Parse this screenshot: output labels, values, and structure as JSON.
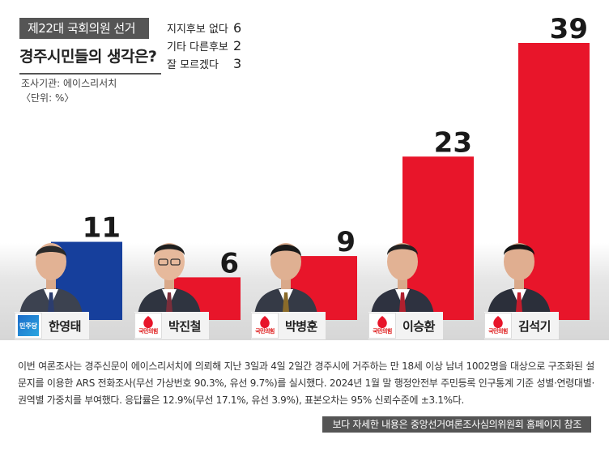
{
  "header": {
    "election_tag": "제22대 국회의원 선거",
    "headline": "경주시민들의 생각은?",
    "agency": "조사기관: 에이스리서치",
    "unit": "〈단위: %〉"
  },
  "other_responses": [
    {
      "label": "지지후보 없다",
      "value": "6"
    },
    {
      "label": "기타 다른후보",
      "value": "2"
    },
    {
      "label": "잘 모르겠다",
      "value": "3"
    }
  ],
  "colors": {
    "ppp_red": "#e8152a",
    "dp_blue": "#163f9c",
    "label_dark": "#1a1a1a"
  },
  "chart_data": {
    "type": "bar",
    "title": "경주시민들의 생각은?",
    "unit": "%",
    "categories": [
      "한영태",
      "박진철",
      "박병훈",
      "이승환",
      "김석기"
    ],
    "values": [
      11,
      6,
      9,
      23,
      39
    ],
    "parties": [
      "더불어민주당",
      "국민의힘",
      "국민의힘",
      "국민의힘",
      "국민의힘"
    ],
    "bar_colors": [
      "#163f9c",
      "#e8152a",
      "#e8152a",
      "#e8152a",
      "#e8152a"
    ],
    "ylim": [
      0,
      39
    ],
    "grid": false,
    "legend": "none"
  },
  "party_logos": {
    "ppp": "국민의힘",
    "dp": "민주당"
  },
  "candidates": [
    {
      "name": "한영태",
      "party_icon": "dp-logo-icon"
    },
    {
      "name": "박진철",
      "party_icon": "ppp-logo-icon"
    },
    {
      "name": "박병훈",
      "party_icon": "ppp-logo-icon"
    },
    {
      "name": "이승환",
      "party_icon": "ppp-logo-icon"
    },
    {
      "name": "김석기",
      "party_icon": "ppp-logo-icon"
    }
  ],
  "footnote": "이번 여론조사는 경주신문이 에이스리서치에 의뢰해 지난 3일과 4일 2일간 경주시에 거주하는 만 18세 이상 남녀 1002명을 대상으로 구조화된 설문지를 이용한 ARS 전화조사(무선 가상번호 90.3%, 유선 9.7%)를 실시했다. 2024년 1월 말 행정안전부 주민등록 인구통계 기준 성별·연령대별·권역별 가중치를 부여했다. 응답률은 12.9%(무선 17.1%, 유선 3.9%), 표본오차는 95% 신뢰수준에 ±3.1%다.",
  "source_note": "보다 자세한 내용은 중앙선거여론조사심의위원회 홈페이지 참조"
}
